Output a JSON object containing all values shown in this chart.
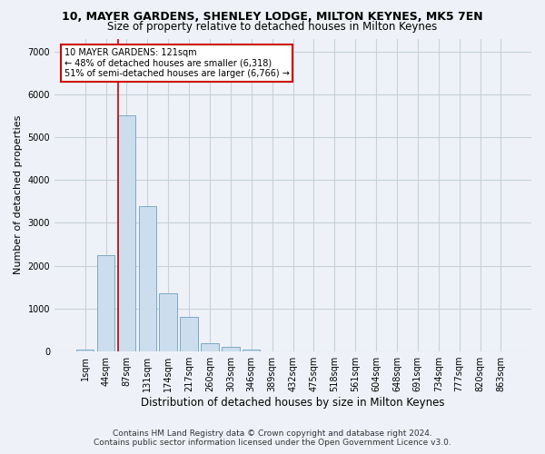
{
  "title": "10, MAYER GARDENS, SHENLEY LODGE, MILTON KEYNES, MK5 7EN",
  "subtitle": "Size of property relative to detached houses in Milton Keynes",
  "xlabel": "Distribution of detached houses by size in Milton Keynes",
  "ylabel": "Number of detached properties",
  "footer_line1": "Contains HM Land Registry data © Crown copyright and database right 2024.",
  "footer_line2": "Contains public sector information licensed under the Open Government Licence v3.0.",
  "bar_labels": [
    "1sqm",
    "44sqm",
    "87sqm",
    "131sqm",
    "174sqm",
    "217sqm",
    "260sqm",
    "303sqm",
    "346sqm",
    "389sqm",
    "432sqm",
    "475sqm",
    "518sqm",
    "561sqm",
    "604sqm",
    "648sqm",
    "691sqm",
    "734sqm",
    "777sqm",
    "820sqm",
    "863sqm"
  ],
  "bar_values": [
    50,
    2250,
    5500,
    3400,
    1350,
    800,
    200,
    100,
    50,
    0,
    0,
    0,
    0,
    0,
    0,
    0,
    0,
    0,
    0,
    0,
    0
  ],
  "bar_color": "#ccdded",
  "bar_edge_color": "#7aaac8",
  "grid_color": "#c8d0dc",
  "background_color": "#eef2f8",
  "vline_color": "#cc0000",
  "vline_x_index": 2,
  "annotation_text_line1": "10 MAYER GARDENS: 121sqm",
  "annotation_text_line2": "← 48% of detached houses are smaller (6,318)",
  "annotation_text_line3": "51% of semi-detached houses are larger (6,766) →",
  "annotation_box_color": "#ffffff",
  "annotation_box_edge": "#cc0000",
  "ylim": [
    0,
    7300
  ],
  "yticks": [
    0,
    1000,
    2000,
    3000,
    4000,
    5000,
    6000,
    7000
  ],
  "title_fontsize": 9,
  "subtitle_fontsize": 8.5,
  "ylabel_fontsize": 8,
  "xlabel_fontsize": 8.5,
  "tick_fontsize": 7,
  "footer_fontsize": 6.5
}
